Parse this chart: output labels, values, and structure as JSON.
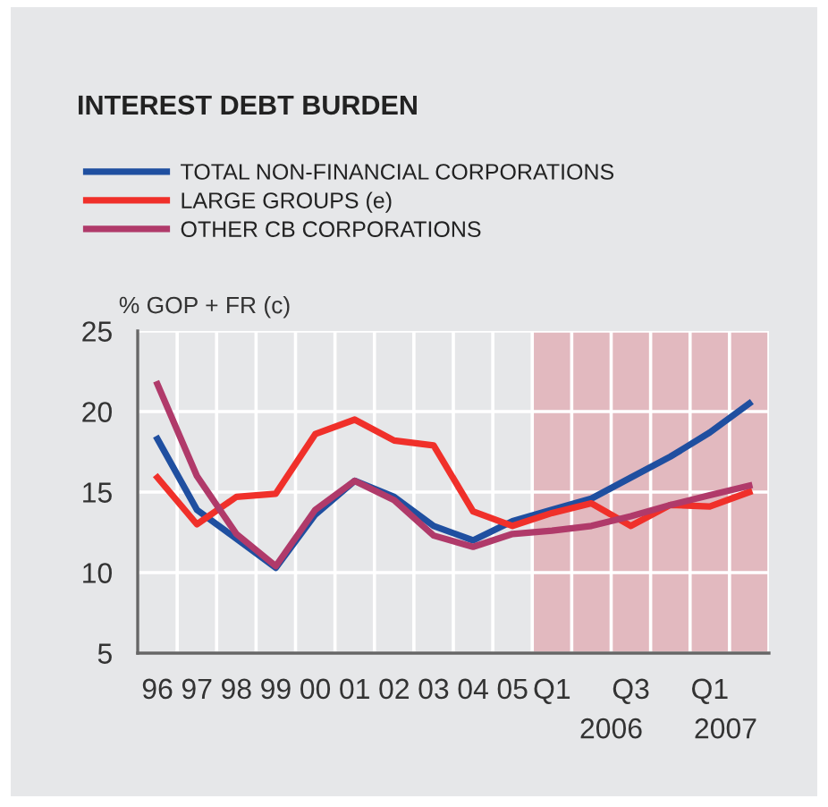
{
  "chart_data": {
    "type": "line",
    "title": "INTEREST DEBT BURDEN",
    "ylabel": "% GOP + FR (c)",
    "categories": [
      "96",
      "97",
      "98",
      "99",
      "00",
      "01",
      "02",
      "03",
      "04",
      "05",
      "Q1",
      null,
      "Q3",
      null,
      "Q1",
      null
    ],
    "annotations": [
      "2006",
      "2007"
    ],
    "series": [
      {
        "name": "TOTAL NON-FINANCIAL CORPORATIONS",
        "color": "#1f4fa0",
        "values": [
          18.3,
          13.9,
          12.1,
          10.3,
          13.6,
          15.7,
          14.7,
          12.9,
          12.0,
          13.2,
          13.9,
          14.6,
          15.9,
          17.2,
          18.7,
          20.5
        ]
      },
      {
        "name": "LARGE GROUPS (e)",
        "color": "#f0302a",
        "values": [
          15.9,
          13.0,
          14.7,
          14.9,
          18.6,
          19.5,
          18.2,
          17.9,
          13.8,
          12.9,
          13.7,
          14.3,
          12.9,
          14.2,
          14.1,
          15.0
        ]
      },
      {
        "name": "OTHER CB CORPORATIONS",
        "color": "#b03a6a",
        "values": [
          21.7,
          16.0,
          12.4,
          10.4,
          13.9,
          15.7,
          14.5,
          12.3,
          11.6,
          12.4,
          12.6,
          12.9,
          13.5,
          14.2,
          14.8,
          15.4
        ]
      }
    ],
    "ylim": [
      5,
      25
    ],
    "yticks": [
      5,
      10,
      15,
      20,
      25
    ],
    "grid": true,
    "legend": "top left",
    "marker": "none",
    "line_style": "solid"
  }
}
